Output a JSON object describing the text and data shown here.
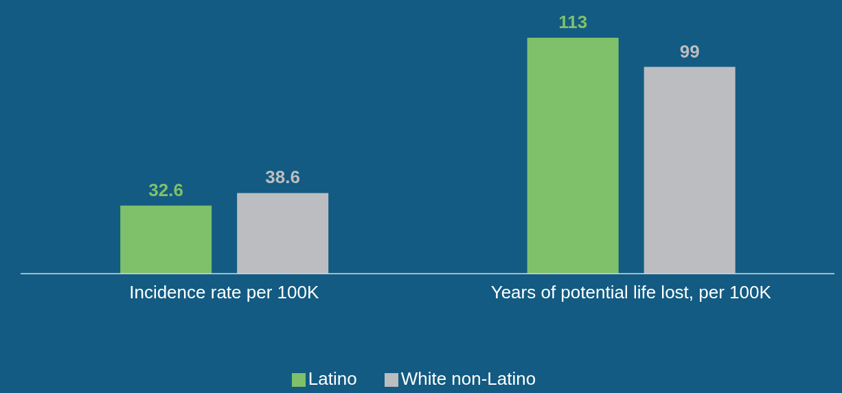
{
  "chart_data": {
    "type": "bar",
    "categories": [
      "Incidence rate per 100K",
      "Years of potential life lost, per 100K"
    ],
    "series": [
      {
        "name": "Latino",
        "color": "#7fc06b",
        "values": [
          32.6,
          113
        ]
      },
      {
        "name": "White non-Latino",
        "color": "#bcbdc1",
        "values": [
          38.6,
          99
        ]
      }
    ],
    "data_labels": true,
    "legend": "bottom",
    "grid": false,
    "tick_labels": "x"
  }
}
